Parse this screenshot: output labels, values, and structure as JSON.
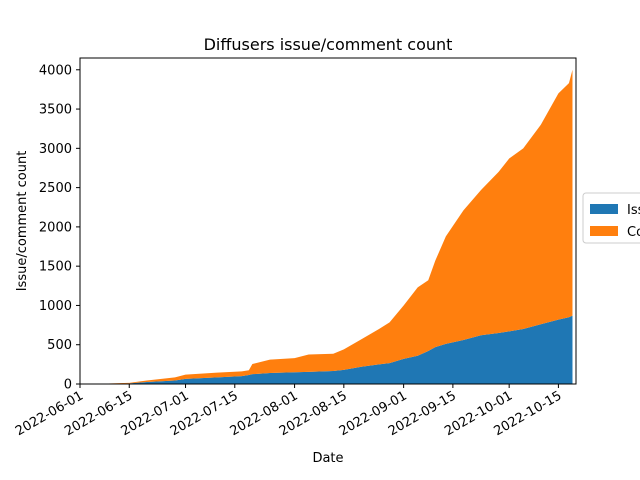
{
  "chart_data": {
    "type": "area",
    "stacked": true,
    "title": "Diffusers issue/comment count",
    "xlabel": "Date",
    "ylabel": "Issue/comment count",
    "xlim": [
      "2022-06-01",
      "2022-10-20"
    ],
    "ylim": [
      0,
      4150
    ],
    "x_ticks": [
      "2022-06-01",
      "2022-06-15",
      "2022-07-01",
      "2022-07-15",
      "2022-08-01",
      "2022-08-15",
      "2022-09-01",
      "2022-09-15",
      "2022-10-01",
      "2022-10-15"
    ],
    "y_ticks": [
      0,
      500,
      1000,
      1500,
      2000,
      2500,
      3000,
      3500,
      4000
    ],
    "grid": false,
    "legend_placement": "outside-right",
    "x": [
      "2022-06-08",
      "2022-06-15",
      "2022-06-20",
      "2022-06-28",
      "2022-07-01",
      "2022-07-10",
      "2022-07-17",
      "2022-07-19",
      "2022-07-20",
      "2022-07-25",
      "2022-08-01",
      "2022-08-05",
      "2022-08-12",
      "2022-08-15",
      "2022-08-20",
      "2022-08-25",
      "2022-08-28",
      "2022-09-01",
      "2022-09-05",
      "2022-09-08",
      "2022-09-10",
      "2022-09-13",
      "2022-09-18",
      "2022-09-23",
      "2022-09-28",
      "2022-10-01",
      "2022-10-05",
      "2022-10-10",
      "2022-10-15",
      "2022-10-18",
      "2022-10-19"
    ],
    "series": [
      {
        "name": "Issues",
        "color": "#1f77b4",
        "values": [
          2,
          8,
          25,
          45,
          65,
          85,
          100,
          115,
          125,
          140,
          150,
          155,
          165,
          180,
          220,
          250,
          265,
          320,
          360,
          420,
          470,
          510,
          560,
          620,
          650,
          670,
          700,
          760,
          820,
          850,
          870
        ]
      },
      {
        "name": "Comments",
        "color": "#ff7f0e",
        "values": [
          3,
          7,
          20,
          40,
          55,
          60,
          60,
          60,
          130,
          170,
          180,
          220,
          220,
          260,
          350,
          450,
          520,
          680,
          870,
          900,
          1100,
          1370,
          1650,
          1850,
          2050,
          2200,
          2300,
          2540,
          2880,
          2980,
          3130
        ]
      }
    ]
  }
}
